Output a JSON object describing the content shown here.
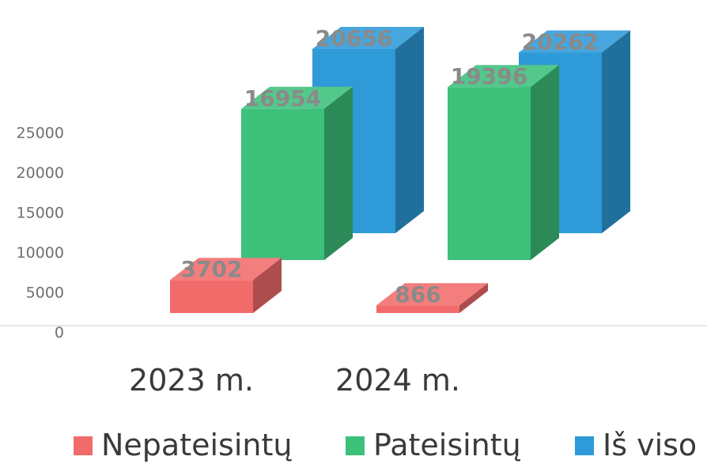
{
  "chart_data": {
    "type": "bar",
    "style": "3d-clustered-column",
    "categories": [
      "2023 m.",
      "2024 m."
    ],
    "series": [
      {
        "name": "Nepateisintų",
        "color": "#f26b6b",
        "values": [
          3702,
          866
        ]
      },
      {
        "name": "Pateisintų",
        "color": "#3cc07a",
        "values": [
          16954,
          19396
        ]
      },
      {
        "name": "Iš viso",
        "color": "#2e9ad8",
        "values": [
          20656,
          20262
        ]
      }
    ],
    "y_ticks": [
      "0",
      "5000",
      "10000",
      "15000",
      "20000",
      "25000"
    ],
    "ylim": [
      0,
      25000
    ],
    "grid": false,
    "legend_position": "bottom"
  }
}
